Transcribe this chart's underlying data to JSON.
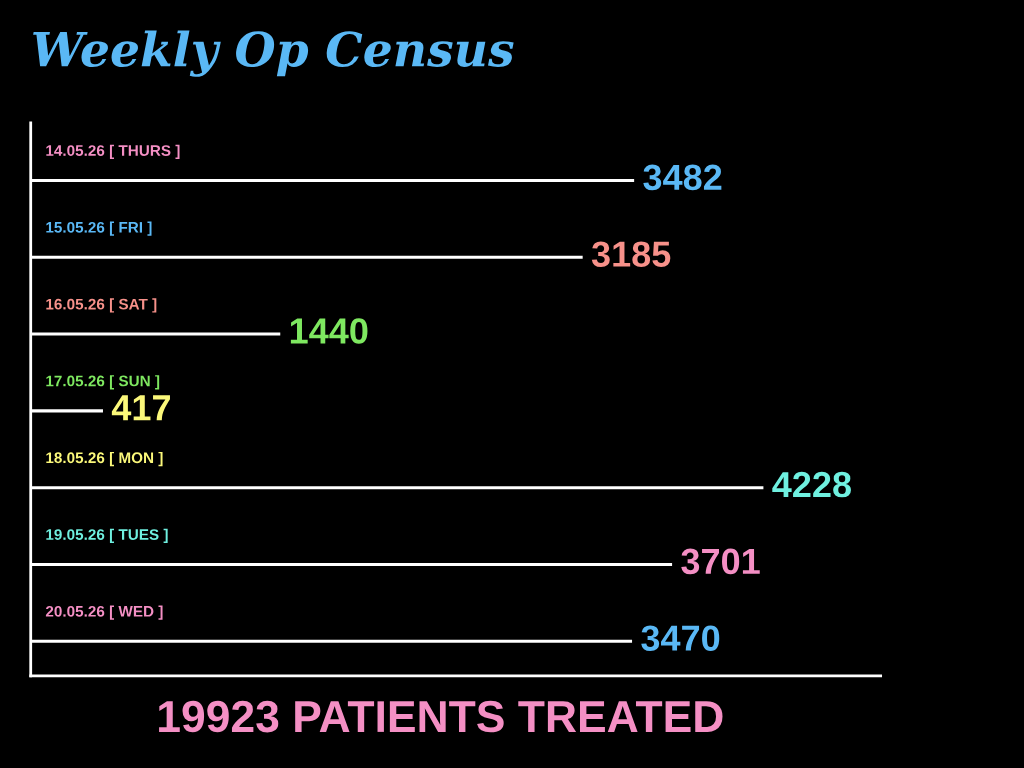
{
  "chart_data": {
    "type": "bar",
    "orientation": "horizontal",
    "title": "Weekly Op Census",
    "categories": [
      "14.05.26 [ THURS ]",
      "15.05.26 [ FRI ]",
      "16.05.26 [ SAT ]",
      "17.05.26 [ SUN ]",
      "18.05.26 [ MON ]",
      "19.05.26 [ TUES ]",
      "20.05.26 [ WED ]"
    ],
    "values": [
      3482,
      3185,
      1440,
      417,
      4228,
      3701,
      3470
    ],
    "color": "#ffffff",
    "data_labels": true,
    "annotations": [
      "19923 PATIENTS TREATED"
    ]
  }
}
